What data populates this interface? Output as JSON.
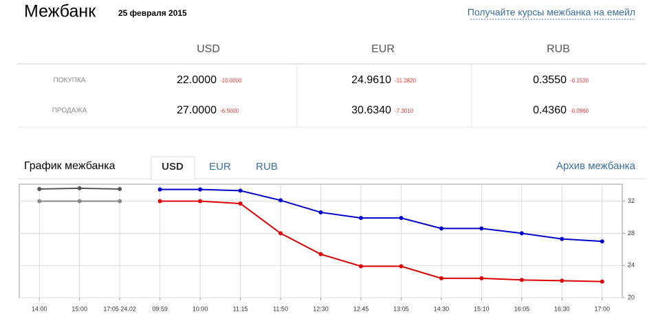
{
  "header": {
    "title": "Межбанк",
    "date": "25 февраля 2015",
    "email_link": "Получайте курсы межбанка на емейл"
  },
  "table": {
    "columns": [
      "USD",
      "EUR",
      "RUB"
    ],
    "rows": [
      {
        "label": "ПОКУПКА",
        "cells": [
          {
            "value": "22.0000",
            "change": "-10.0000"
          },
          {
            "value": "24.9610",
            "change": "-11.2820"
          },
          {
            "value": "0.3550",
            "change": "-0.1520"
          }
        ]
      },
      {
        "label": "ПРОДАЖА",
        "cells": [
          {
            "value": "27.0000",
            "change": "-6.5000"
          },
          {
            "value": "30.6340",
            "change": "-7.3010"
          },
          {
            "value": "0.4360",
            "change": "-0.0960"
          }
        ]
      }
    ]
  },
  "tabs": {
    "title": "График межбанка",
    "items": [
      "USD",
      "EUR",
      "RUB"
    ],
    "active": 0,
    "archive_link": "Архив межбанка"
  },
  "chart_data": {
    "type": "line",
    "categories": [
      "14:00",
      "15:00",
      "17:05 24.02",
      "09:59",
      "10:00",
      "11:15",
      "11:50",
      "12:30",
      "12:45",
      "13:05",
      "14:30",
      "15:10",
      "16:05",
      "16:30",
      "17:00"
    ],
    "series": [
      {
        "color": "#555555",
        "values": [
          33.5,
          33.6,
          33.5,
          null,
          null,
          null,
          null,
          null,
          null,
          null,
          null,
          null,
          null,
          null,
          null
        ]
      },
      {
        "color": "#888888",
        "values": [
          32.0,
          32.0,
          32.0,
          null,
          null,
          null,
          null,
          null,
          null,
          null,
          null,
          null,
          null,
          null,
          null
        ]
      },
      {
        "color": "#0000cc",
        "values": [
          null,
          null,
          null,
          33.45,
          33.45,
          33.3,
          32.1,
          30.6,
          29.9,
          29.9,
          28.6,
          28.6,
          28.0,
          27.3,
          27.0
        ]
      },
      {
        "color": "#dd0000",
        "values": [
          null,
          null,
          null,
          32.0,
          32.0,
          31.7,
          28.0,
          25.4,
          23.9,
          23.9,
          22.4,
          22.4,
          22.2,
          22.1,
          22.0
        ]
      }
    ],
    "ylim": [
      20,
      34.1
    ],
    "yticks": [
      20,
      24,
      28,
      32
    ],
    "grid": true,
    "y_axis_side": "right"
  }
}
